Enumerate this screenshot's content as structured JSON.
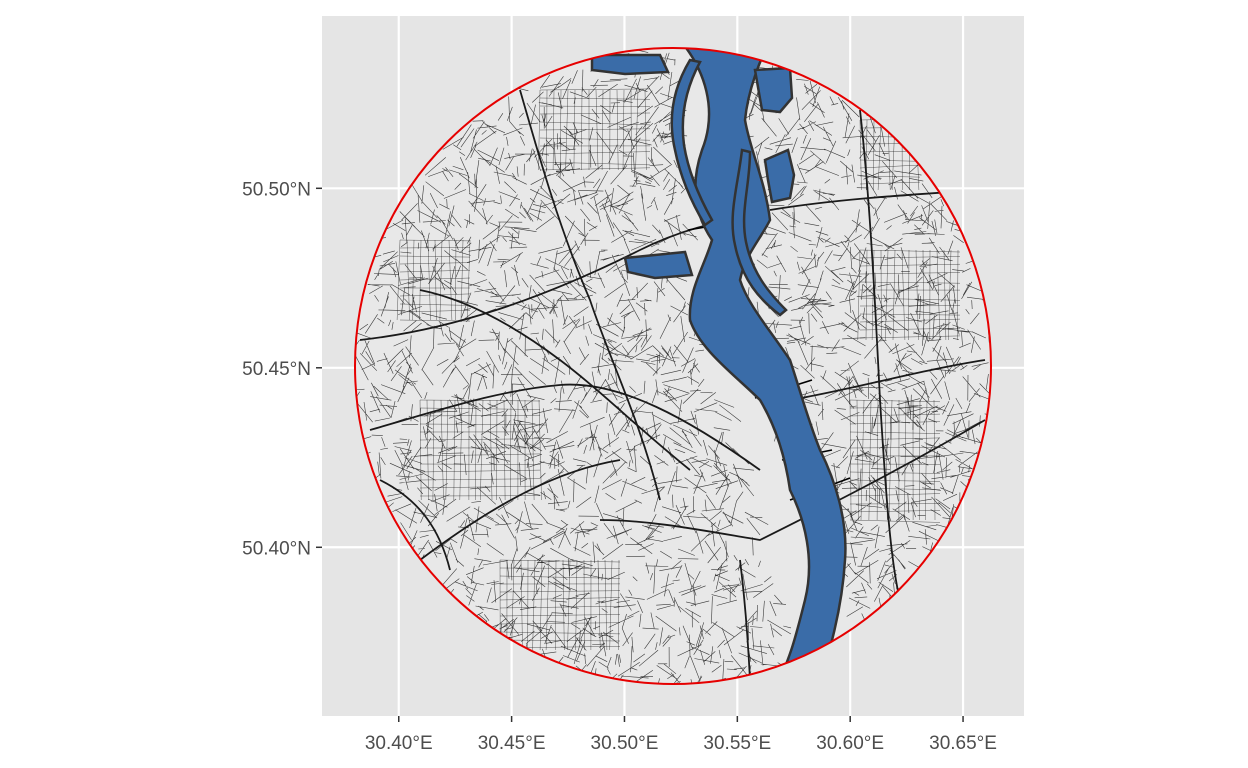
{
  "map": {
    "x_ticks": [
      {
        "value": 30.4,
        "label": "30.40°E"
      },
      {
        "value": 30.45,
        "label": "30.45°E"
      },
      {
        "value": 30.5,
        "label": "30.50°E"
      },
      {
        "value": 30.55,
        "label": "30.55°E"
      },
      {
        "value": 30.6,
        "label": "30.60°E"
      },
      {
        "value": 30.65,
        "label": "30.65°E"
      }
    ],
    "y_ticks": [
      {
        "value": 50.4,
        "label": "50.40°N"
      },
      {
        "value": 50.45,
        "label": "50.45°N"
      },
      {
        "value": 50.5,
        "label": "50.50°N"
      }
    ],
    "xlim": [
      30.366,
      30.677
    ],
    "ylim": [
      50.353,
      50.548
    ],
    "colors": {
      "panel_background": "#e5e5e5",
      "gridline": "#ffffff",
      "land": "#e8e8e8",
      "streets": "#1a1a1a",
      "river_fill": "#3a6ca8",
      "river_outline": "#333333",
      "boundary": "#e60000"
    }
  }
}
